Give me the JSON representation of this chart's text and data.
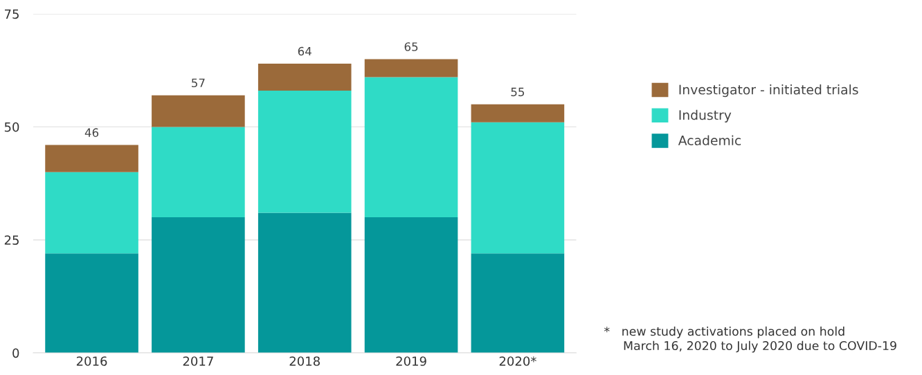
{
  "chart_data": {
    "type": "bar",
    "stacked": true,
    "categories": [
      "2016",
      "2017",
      "2018",
      "2019",
      "2020*"
    ],
    "series": [
      {
        "name": "Academic",
        "color": "#05979a",
        "values": [
          22,
          30,
          31,
          30,
          22
        ]
      },
      {
        "name": "Industry",
        "color": "#2fdbc6",
        "values": [
          18,
          20,
          27,
          31,
          29
        ]
      },
      {
        "name": "Investigator - initiated trials",
        "color": "#9b6a3a",
        "values": [
          6,
          7,
          6,
          4,
          4
        ]
      }
    ],
    "totals": [
      "46",
      "57",
      "64",
      "65",
      "55"
    ],
    "ylim": [
      0,
      75
    ],
    "yticks": [
      0,
      25,
      50,
      75
    ],
    "grid": "y",
    "legend": "right",
    "annotations": [
      "*   new study activations placed on hold\n     March 16, 2020 to July 2020 due to COVID-19"
    ]
  }
}
